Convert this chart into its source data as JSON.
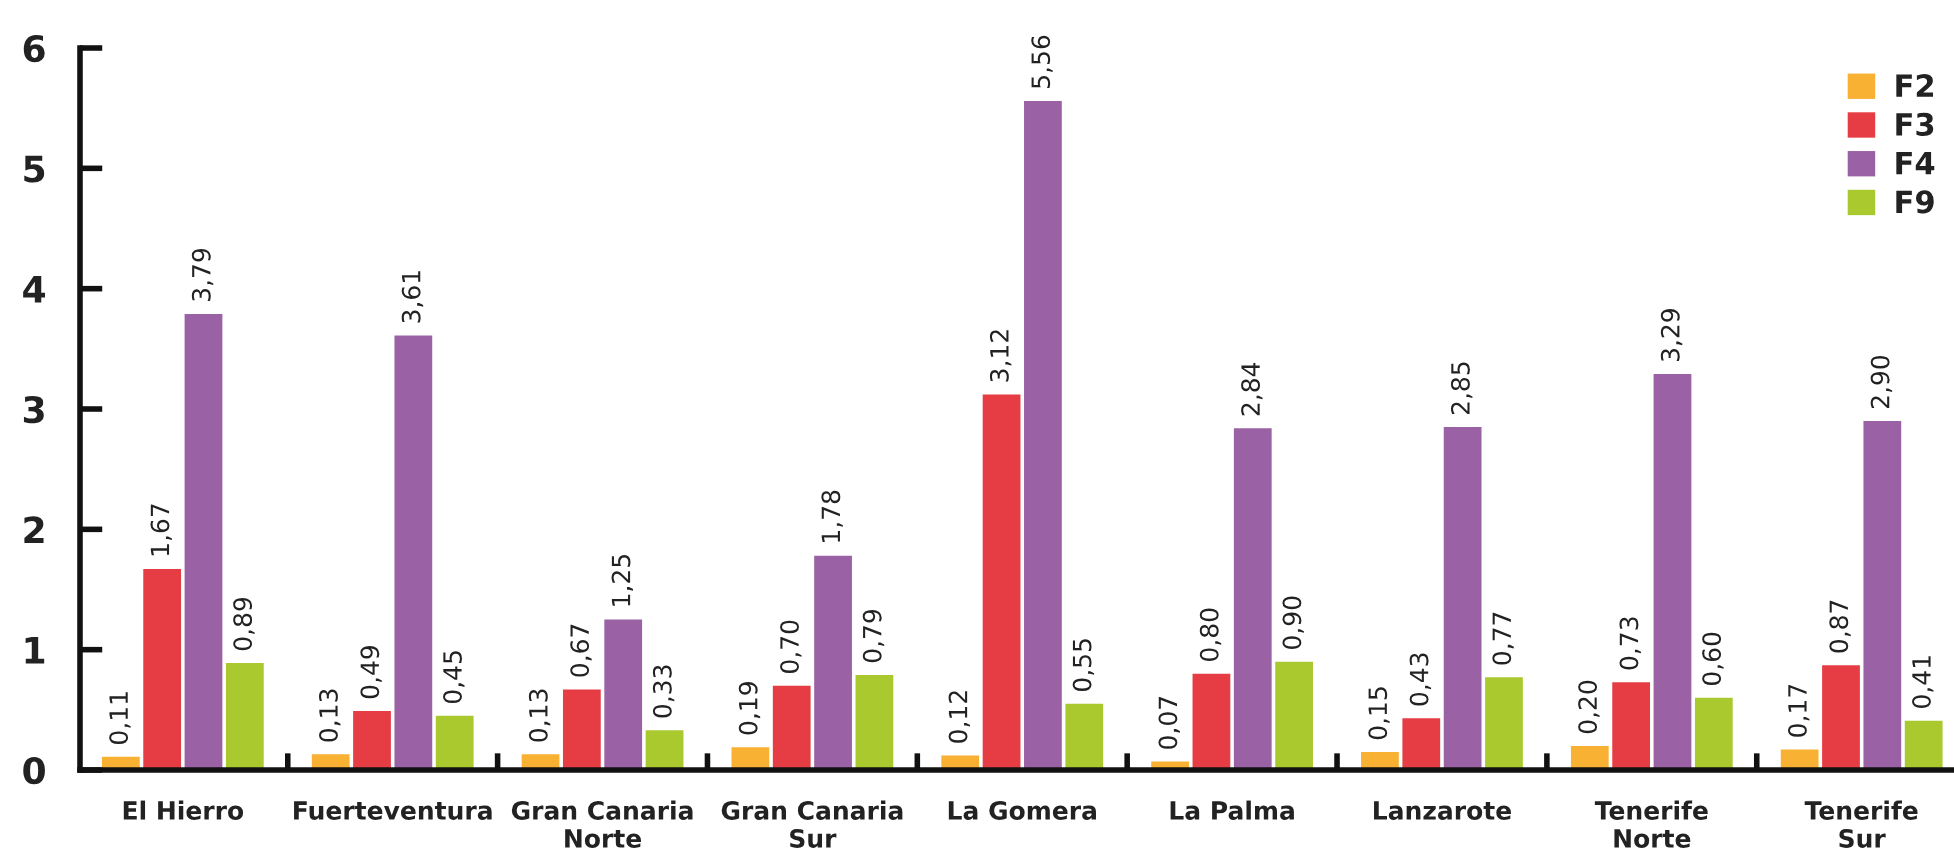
{
  "chart_data": {
    "type": "bar",
    "categories": [
      "El Hierro",
      "Fuerteventura",
      "Gran Canaria\nNorte",
      "Gran Canaria\nSur",
      "La Gomera",
      "La Palma",
      "Lanzarote",
      "Tenerife\nNorte",
      "Tenerife\nSur"
    ],
    "series": [
      {
        "name": "F2",
        "color": "#f8b133",
        "values": [
          0.11,
          0.13,
          0.13,
          0.19,
          0.12,
          0.07,
          0.15,
          0.2,
          0.17
        ],
        "value_labels": [
          "0,11",
          "0,13",
          "0,13",
          "0,19",
          "0,12",
          "0,07",
          "0,15",
          "0,20",
          "0,17"
        ]
      },
      {
        "name": "F3",
        "color": "#e63c43",
        "values": [
          1.67,
          0.49,
          0.67,
          0.7,
          3.12,
          0.8,
          0.43,
          0.73,
          0.87
        ],
        "value_labels": [
          "1,67",
          "0,49",
          "0,67",
          "0,70",
          "3,12",
          "0,80",
          "0,43",
          "0,73",
          "0,87"
        ]
      },
      {
        "name": "F4",
        "color": "#9a62a4",
        "values": [
          3.79,
          3.61,
          1.25,
          1.78,
          5.56,
          2.84,
          2.85,
          3.29,
          2.9
        ],
        "value_labels": [
          "3,79",
          "3,61",
          "1,25",
          "1,78",
          "5,56",
          "2,84",
          "2,85",
          "3,29",
          "2,90"
        ]
      },
      {
        "name": "F9",
        "color": "#a9c92e",
        "values": [
          0.89,
          0.45,
          0.33,
          0.79,
          0.55,
          0.9,
          0.77,
          0.6,
          0.41
        ],
        "value_labels": [
          "0,89",
          "0,45",
          "0,33",
          "0,79",
          "0,55",
          "0,90",
          "0,77",
          "0,60",
          "0,41"
        ]
      }
    ],
    "ylim": [
      0,
      6
    ],
    "yticks": [
      0,
      1,
      2,
      3,
      4,
      5,
      6
    ],
    "legend": "top right"
  }
}
